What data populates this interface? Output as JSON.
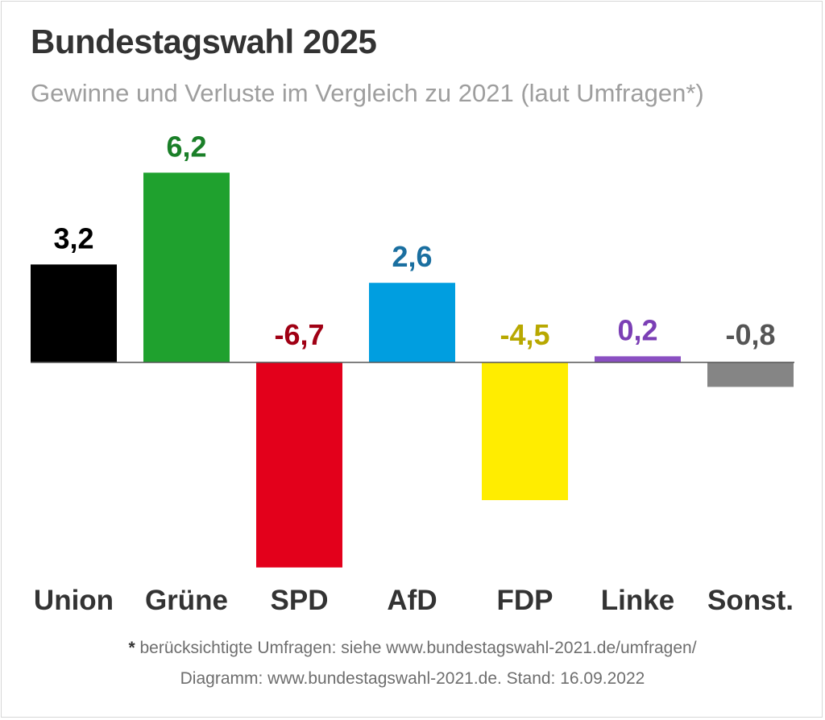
{
  "chart_data": {
    "type": "bar",
    "title": "Bundestagswahl 2025",
    "subtitle": "Gewinne und Verluste im Vergleich zu 2021 (laut Umfragen*)",
    "categories": [
      "Union",
      "Grüne",
      "SPD",
      "AfD",
      "FDP",
      "Linke",
      "Sonst."
    ],
    "values": [
      3.2,
      6.2,
      -6.7,
      2.6,
      -4.5,
      0.2,
      -0.8
    ],
    "value_labels": [
      "3,2",
      "6,2",
      "-6,7",
      "2,6",
      "-4,5",
      "0,2",
      "-0,8"
    ],
    "bar_colors": [
      "#000000",
      "#1fa12e",
      "#e3001b",
      "#009ee0",
      "#ffed00",
      "#8a4fc2",
      "#858585"
    ],
    "label_colors": [
      "#000000",
      "#1a7f28",
      "#a00014",
      "#1a6fa0",
      "#b8a800",
      "#7b3fb5",
      "#555555"
    ],
    "xlabel": "",
    "ylabel": "",
    "ylim": [
      -6.7,
      6.2
    ],
    "grid": false,
    "legend": "none",
    "zero_line_color": "#555555",
    "footnotes": {
      "star": "*",
      "line1": "berücksichtigte Umfragen: siehe www.bundestagswahl-2021.de/umfragen/",
      "line2": "Diagramm: www.bundestagswahl-2021.de. Stand: 16.09.2022"
    }
  }
}
